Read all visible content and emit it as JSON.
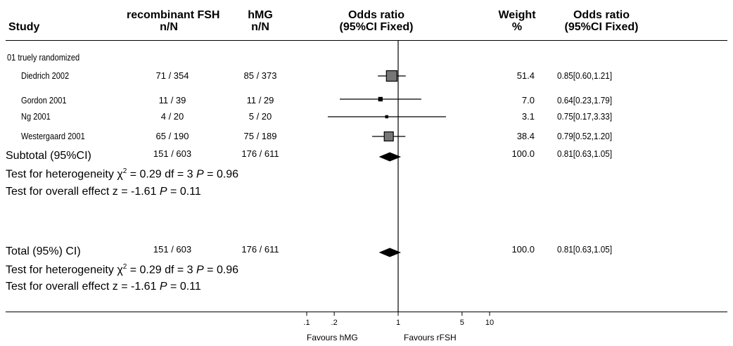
{
  "header": {
    "study": "Study",
    "rfsh_line1": "recombinant FSH",
    "rfsh_line2": "n/N",
    "hmg_line1": "hMG",
    "hmg_line2": "n/N",
    "or_line1": "Odds ratio",
    "or_line2": "(95%CI Fixed)",
    "weight_line1": "Weight",
    "weight_line2": "%",
    "orv_line1": "Odds ratio",
    "orv_line2": "(95%CI Fixed)"
  },
  "subgroup_label": "01 truely randomized",
  "studies": [
    {
      "name": "Diedrich 2002",
      "rfsh": "71 / 354",
      "hmg": "85 / 373",
      "weight": "51.4",
      "ci_text": "0.85[0.60,1.21]"
    },
    {
      "name": "Gordon 2001",
      "rfsh": "11 / 39",
      "hmg": "11 / 29",
      "weight": "7.0",
      "ci_text": "0.64[0.23,1.79]"
    },
    {
      "name": "Ng 2001",
      "rfsh": "4 / 20",
      "hmg": "5 / 20",
      "weight": "3.1",
      "ci_text": "0.75[0.17,3.33]"
    },
    {
      "name": "Westergaard 2001",
      "rfsh": "65 / 190",
      "hmg": "75 / 189",
      "weight": "38.4",
      "ci_text": "0.79[0.52,1.20]"
    }
  ],
  "subtotal": {
    "name": "Subtotal (95%CI)",
    "rfsh": "151 / 603",
    "hmg": "176 / 611",
    "weight": "100.0",
    "ci_text": "0.81[0.63,1.05]",
    "het_prefix": "Test for heterogeneity ",
    "chi": "χ",
    "sup": "2",
    "het_mid": " = 0.29  df = 3 ",
    "p": "P",
    "het_end": " = 0.96",
    "eff_prefix": "Test for overall effect z = -1.61 ",
    "eff_end": " = 0.11"
  },
  "total": {
    "name": "Total (95%) CI)",
    "rfsh": "151 / 603",
    "hmg": "176 / 611",
    "weight": "100.0",
    "ci_text": "0.81[0.63,1.05]",
    "het_prefix": "Test for heterogeneity ",
    "chi": "χ",
    "sup": "2",
    "het_mid": " = 0.29  df = 3 ",
    "p": "P",
    "het_end": " = 0.96",
    "eff_prefix": "Test for overall effect z = -1.61 ",
    "eff_end": " = 0.11"
  },
  "axis": {
    "favours_left": "Favours hMG",
    "favours_right": "Favours rFSH"
  },
  "chart_data": {
    "type": "forest",
    "scale": "log",
    "xlim": [
      0.1,
      10
    ],
    "ticks": [
      {
        "value": 0.1,
        "label": ".1"
      },
      {
        "value": 0.2,
        "label": ".2"
      },
      {
        "value": 1,
        "label": "1"
      },
      {
        "value": 5,
        "label": "5"
      },
      {
        "value": 10,
        "label": "10"
      }
    ],
    "studies": [
      {
        "name": "Diedrich 2002",
        "or": 0.85,
        "lo": 0.6,
        "hi": 1.21,
        "weight": 51.4
      },
      {
        "name": "Gordon 2001",
        "or": 0.64,
        "lo": 0.23,
        "hi": 1.79,
        "weight": 7.0
      },
      {
        "name": "Ng 2001",
        "or": 0.75,
        "lo": 0.17,
        "hi": 3.33,
        "weight": 3.1
      },
      {
        "name": "Westergaard 2001",
        "or": 0.79,
        "lo": 0.52,
        "hi": 1.2,
        "weight": 38.4
      }
    ],
    "subtotal": {
      "or": 0.81,
      "lo": 0.63,
      "hi": 1.05
    },
    "total": {
      "or": 0.81,
      "lo": 0.63,
      "hi": 1.05
    }
  }
}
